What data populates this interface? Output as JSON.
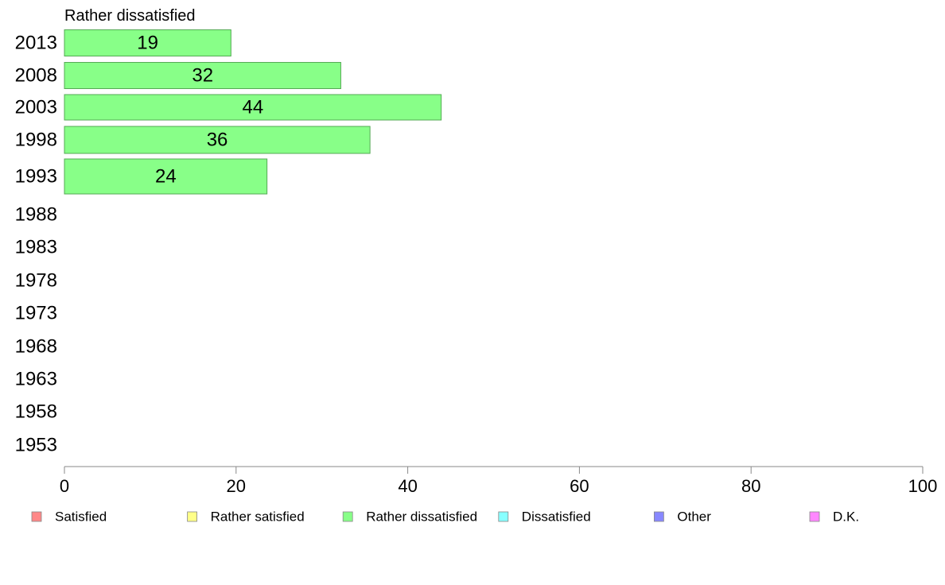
{
  "chart_data": {
    "type": "bar",
    "orientation": "horizontal",
    "title": "Rather dissatisfied",
    "categories": [
      "2013",
      "2008",
      "2003",
      "1998",
      "1993",
      "1988",
      "1983",
      "1978",
      "1973",
      "1968",
      "1963",
      "1958",
      "1953"
    ],
    "values": [
      19.4,
      32.2,
      43.9,
      35.6,
      23.6,
      null,
      null,
      null,
      null,
      null,
      null,
      null,
      null
    ],
    "data_labels": [
      "19",
      "32",
      "44",
      "36",
      "24",
      "",
      "",
      "",
      "",
      "",
      "",
      "",
      ""
    ],
    "xlim": [
      0,
      100
    ],
    "x_ticks": [
      "0",
      "20",
      "40",
      "60",
      "80",
      "100"
    ],
    "grid": false,
    "bar_color": "#88ff88",
    "bar_edge_color": "#55aa55",
    "legend_position": "bottom",
    "legend": [
      {
        "label": "Satisfied",
        "color": "#ff8888"
      },
      {
        "label": "Rather satisfied",
        "color": "#ffff88"
      },
      {
        "label": "Rather dissatisfied",
        "color": "#88ff88"
      },
      {
        "label": "Dissatisfied",
        "color": "#88ffff"
      },
      {
        "label": "Other",
        "color": "#8888ff"
      },
      {
        "label": "D.K.",
        "color": "#ff88ff"
      }
    ]
  }
}
